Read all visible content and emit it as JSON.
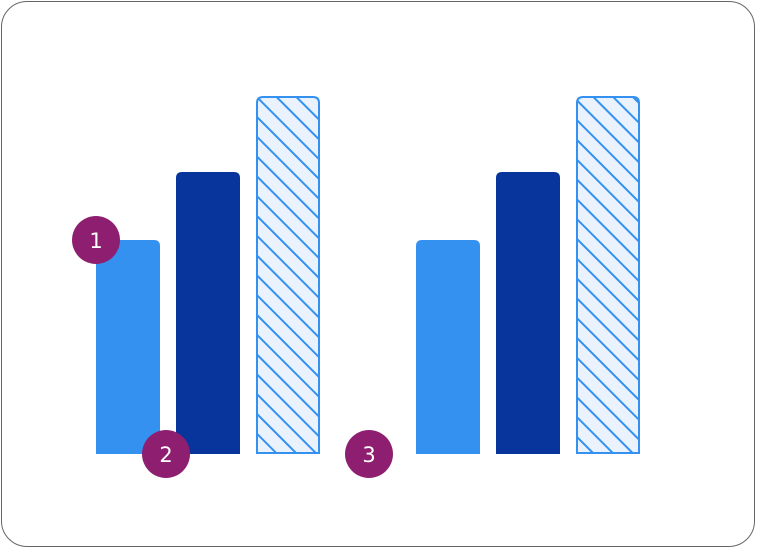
{
  "colors": {
    "frame_border": "#666666",
    "bar_light": "#3591F0",
    "bar_dark": "#08359C",
    "bar_hatch_stroke": "#3591F0",
    "bar_hatch_fill": "#EAF3FD",
    "callout_fill": "#8E1F70",
    "callout_text": "#FFFFFF"
  },
  "bar_groups": [
    {
      "bars": [
        {
          "style": "solid-light",
          "value": 0.6
        },
        {
          "style": "solid-dark",
          "value": 0.8
        },
        {
          "style": "hatched",
          "value": 1.0
        }
      ]
    },
    {
      "bars": [
        {
          "style": "solid-light",
          "value": 0.6
        },
        {
          "style": "solid-dark",
          "value": 0.8
        },
        {
          "style": "hatched",
          "value": 1.0
        }
      ]
    }
  ],
  "callouts": [
    {
      "label": "1"
    },
    {
      "label": "2"
    },
    {
      "label": "3"
    }
  ]
}
